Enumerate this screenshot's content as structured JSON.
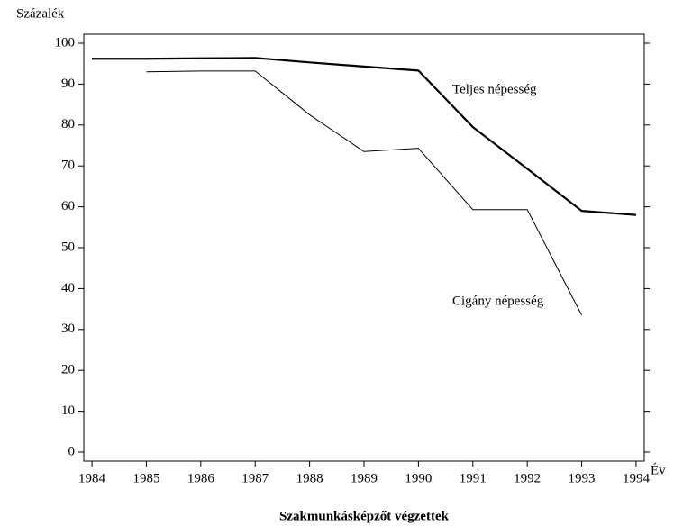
{
  "chart_data": {
    "type": "line",
    "title": "Szakmunkásképzőt végzettek",
    "y_label": "Százalék",
    "x_label": "Év",
    "x": [
      1984,
      1985,
      1986,
      1987,
      1988,
      1989,
      1990,
      1991,
      1992,
      1993,
      1994
    ],
    "series": [
      {
        "name": "Teljes népesség",
        "color": "#000000",
        "values": [
          96.2,
          96.2,
          96.3,
          96.4,
          95.3,
          94.3,
          93.3,
          79.5,
          69.3,
          59,
          58
        ]
      },
      {
        "name": "Cigány népesség",
        "color": "#000000",
        "values": [
          null,
          93,
          93.2,
          93.2,
          82.5,
          73.5,
          74.3,
          59.3,
          59.3,
          33.5,
          null
        ]
      }
    ],
    "xlim": [
      1983.85,
      1994.15
    ],
    "xticks": [
      1984,
      1985,
      1986,
      1987,
      1988,
      1989,
      1990,
      1991,
      1992,
      1993,
      1994
    ],
    "ylim": [
      -2.2,
      102.2
    ],
    "yticks": [
      0,
      10,
      20,
      30,
      40,
      50,
      60,
      70,
      80,
      90,
      100
    ],
    "grid": false
  }
}
